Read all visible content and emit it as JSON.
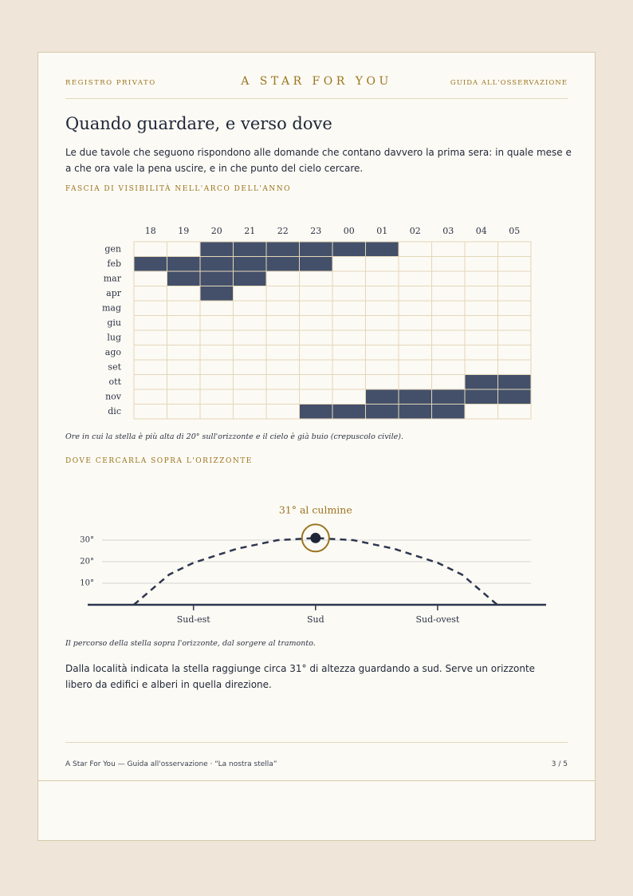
{
  "header": {
    "left": "REGISTRO PRIVATO",
    "center": "A STAR FOR YOU",
    "right": "GUIDA ALL'OSSERVAZIONE"
  },
  "title": "Quando guardare, e verso dove",
  "intro": "Le due tavole che seguono rispondono alle domande che contano davvero la prima sera: in quale mese e a che ora vale la pena uscire, e in che punto del cielo cercare.",
  "section1": "FASCIA DI VISIBILITÀ NELL'ARCO DELL'ANNO",
  "chart_data": [
    {
      "type": "heatmap",
      "color": "#44506a",
      "columns": [
        "18",
        "19",
        "20",
        "21",
        "22",
        "23",
        "00",
        "01",
        "02",
        "03",
        "04",
        "05"
      ],
      "rows": [
        {
          "name": "gen",
          "values": [
            0,
            0,
            1,
            1,
            1,
            1,
            1,
            1,
            0,
            0,
            0,
            0
          ]
        },
        {
          "name": "feb",
          "values": [
            1,
            1,
            1,
            1,
            1,
            1,
            0,
            0,
            0,
            0,
            0,
            0
          ]
        },
        {
          "name": "mar",
          "values": [
            0,
            1,
            1,
            1,
            0,
            0,
            0,
            0,
            0,
            0,
            0,
            0
          ]
        },
        {
          "name": "apr",
          "values": [
            0,
            0,
            1,
            0,
            0,
            0,
            0,
            0,
            0,
            0,
            0,
            0
          ]
        },
        {
          "name": "mag",
          "values": [
            0,
            0,
            0,
            0,
            0,
            0,
            0,
            0,
            0,
            0,
            0,
            0
          ]
        },
        {
          "name": "giu",
          "values": [
            0,
            0,
            0,
            0,
            0,
            0,
            0,
            0,
            0,
            0,
            0,
            0
          ]
        },
        {
          "name": "lug",
          "values": [
            0,
            0,
            0,
            0,
            0,
            0,
            0,
            0,
            0,
            0,
            0,
            0
          ]
        },
        {
          "name": "ago",
          "values": [
            0,
            0,
            0,
            0,
            0,
            0,
            0,
            0,
            0,
            0,
            0,
            0
          ]
        },
        {
          "name": "set",
          "values": [
            0,
            0,
            0,
            0,
            0,
            0,
            0,
            0,
            0,
            0,
            0,
            0
          ]
        },
        {
          "name": "ott",
          "values": [
            0,
            0,
            0,
            0,
            0,
            0,
            0,
            0,
            0,
            0,
            1,
            1
          ]
        },
        {
          "name": "nov",
          "values": [
            0,
            0,
            0,
            0,
            0,
            0,
            0,
            1,
            1,
            1,
            1,
            1
          ]
        },
        {
          "name": "dic",
          "values": [
            0,
            0,
            0,
            0,
            0,
            1,
            1,
            1,
            1,
            1,
            0,
            0
          ]
        }
      ]
    },
    {
      "type": "arc",
      "color": "#2d3650",
      "annotation": "31° al culmine",
      "peak_index": 5,
      "x": [
        113,
        126,
        135,
        151,
        166,
        180,
        194,
        209,
        225,
        234,
        247
      ],
      "values": [
        0,
        14,
        19.5,
        26,
        30,
        31,
        30,
        26,
        19.5,
        14,
        0
      ],
      "xlim": [
        96,
        265
      ],
      "xticks": [
        {
          "value": 135,
          "label": "Sud-est"
        },
        {
          "value": 180,
          "label": "Sud"
        },
        {
          "value": 225,
          "label": "Sud-ovest"
        }
      ],
      "ylim": [
        0,
        35
      ],
      "yticks": [
        {
          "value": 10,
          "label": "10°"
        },
        {
          "value": 20,
          "label": "20°"
        },
        {
          "value": 30,
          "label": "30°"
        }
      ],
      "grid": true
    }
  ],
  "caption1": "Ore in cui la stella è più alta di 20° sull'orizzonte e il cielo è già buio (crepuscolo civile).",
  "section2": "DOVE CERCARLA SOPRA L'ORIZZONTE",
  "caption2": "Il percorso della stella sopra l'orizzonte, dal sorgere al tramonto.",
  "body2": "Dalla località indicata la stella raggiunge circa 31° di altezza guardando a sud. Serve un orizzonte libero da edifici e alberi in quella direzione.",
  "footer": {
    "left": "A Star For You — Guida all'osservazione · “La nostra stella”",
    "right": "3 / 5"
  }
}
